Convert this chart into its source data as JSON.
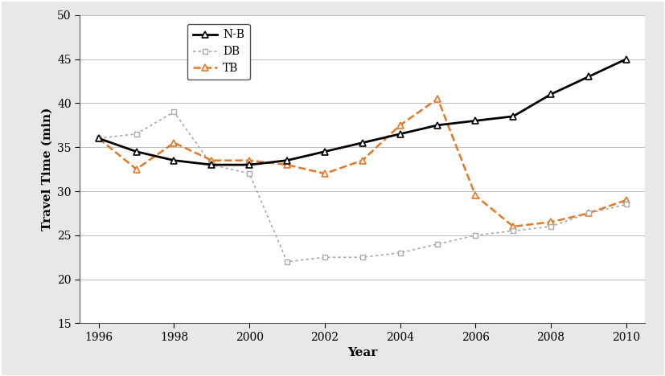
{
  "NB_x": [
    1996,
    1997,
    1998,
    1999,
    2000,
    2001,
    2002,
    2003,
    2004,
    2005,
    2006,
    2007,
    2008,
    2009,
    2010
  ],
  "NB_y": [
    36,
    34.5,
    33.5,
    33,
    33,
    33.5,
    34.5,
    35.5,
    36.5,
    37.5,
    38,
    38.5,
    41,
    43,
    45
  ],
  "DB_x": [
    1996,
    1997,
    1998,
    1999,
    2000,
    2001,
    2002,
    2003,
    2004,
    2005,
    2006,
    2007,
    2008,
    2009,
    2010
  ],
  "DB_y": [
    36,
    36.5,
    39,
    33,
    32,
    22,
    22.5,
    22.5,
    23,
    24,
    25,
    25.5,
    26,
    27.5,
    28.5
  ],
  "TB_x": [
    1996,
    1997,
    1998,
    1999,
    2000,
    2001,
    2002,
    2003,
    2004,
    2005,
    2006,
    2007,
    2008,
    2009,
    2010
  ],
  "TB_y": [
    36,
    32.5,
    35.5,
    33.5,
    33.5,
    33,
    32,
    33.5,
    37.5,
    40.5,
    29.5,
    26,
    26.5,
    27.5,
    29
  ],
  "xlabel": "Year",
  "ylabel": "Travel Time (min)",
  "ylim": [
    15,
    50
  ],
  "xlim": [
    1995.5,
    2010.5
  ],
  "yticks": [
    15,
    20,
    25,
    30,
    35,
    40,
    45,
    50
  ],
  "xticks": [
    1996,
    1998,
    2000,
    2002,
    2004,
    2006,
    2008,
    2010
  ],
  "NB_color": "#000000",
  "DB_color": "#aaaaaa",
  "TB_color": "#E87722",
  "outer_bg": "#f0f0f0",
  "inner_bg": "#ffffff",
  "legend_labels": [
    "N-B",
    "DB",
    "TB"
  ]
}
